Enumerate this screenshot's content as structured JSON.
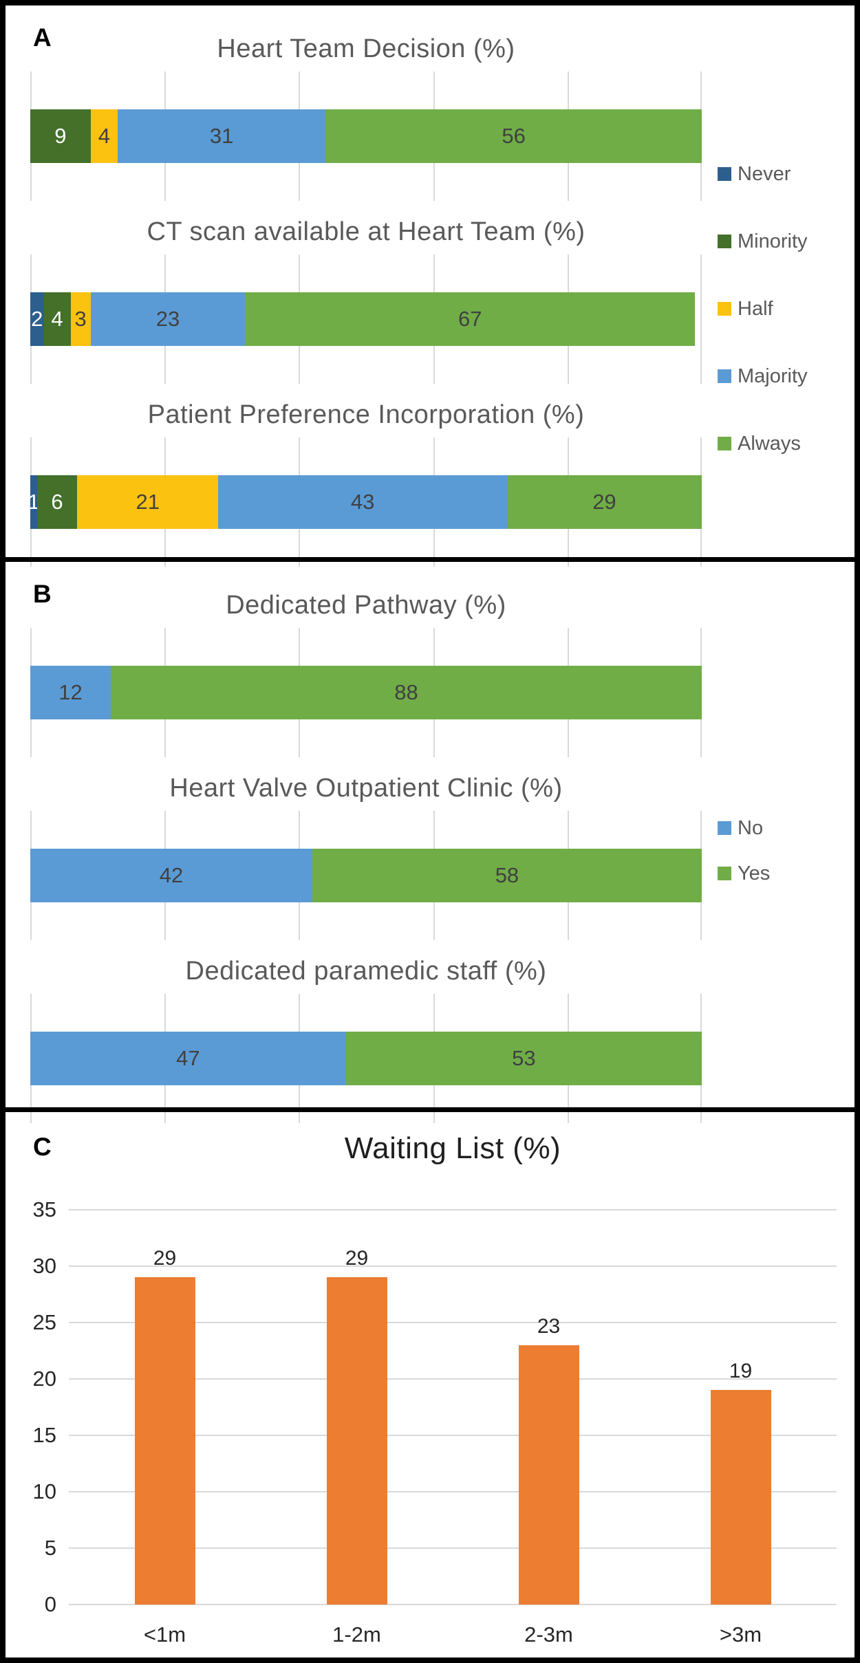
{
  "panel_labels": {
    "a": "A",
    "b": "B",
    "c": "C"
  },
  "style_colors": {
    "grid": "#D9D9D9",
    "title_gray": "#595959",
    "label_dark": "#404040",
    "label_white": "#FFFFFF",
    "panel_c_text": "#262626",
    "border": "#000000"
  },
  "chart_data": [
    {
      "panel": "A",
      "type": "bar",
      "subtype": "stacked-horizontal-100",
      "unit": "%",
      "legend": [
        "Never",
        "Minority",
        "Half",
        "Majority",
        "Always"
      ],
      "colors": [
        "#2C5F8E",
        "#44702A",
        "#FCC210",
        "#5B9BD5",
        "#70AD47"
      ],
      "label_colors": [
        "#FFFFFF",
        "#FFFFFF",
        "#404040",
        "#404040",
        "#404040"
      ],
      "axis": {
        "min": 0,
        "max": 100,
        "gridline_step": 20
      },
      "legend_position": "right",
      "charts": [
        {
          "title": "Heart Team Decision (%)",
          "values": [
            0,
            9,
            4,
            31,
            56
          ]
        },
        {
          "title": "CT scan available at Heart Team (%)",
          "values": [
            2,
            4,
            3,
            23,
            67
          ]
        },
        {
          "title": "Patient Preference Incorporation (%)",
          "values": [
            1,
            6,
            21,
            43,
            29
          ]
        }
      ]
    },
    {
      "panel": "B",
      "type": "bar",
      "subtype": "stacked-horizontal-100",
      "unit": "%",
      "legend": [
        "No",
        "Yes"
      ],
      "colors": [
        "#5B9BD5",
        "#70AD47"
      ],
      "label_colors": [
        "#404040",
        "#404040"
      ],
      "axis": {
        "min": 0,
        "max": 100,
        "gridline_step": 20
      },
      "legend_position": "right",
      "charts": [
        {
          "title": "Dedicated Pathway (%)",
          "values": [
            12,
            88
          ]
        },
        {
          "title": "Heart Valve Outpatient Clinic (%)",
          "values": [
            42,
            58
          ]
        },
        {
          "title": "Dedicated paramedic staff (%)",
          "values": [
            47,
            53
          ]
        }
      ]
    },
    {
      "panel": "C",
      "type": "bar",
      "subtype": "vertical-column",
      "unit": "%",
      "title": "Waiting List (%)",
      "categories": [
        "<1m",
        "1-2m",
        "2-3m",
        ">3m"
      ],
      "values": [
        29,
        29,
        23,
        19
      ],
      "bar_color": "#ED7D31",
      "ylim": [
        0,
        35
      ],
      "yticks": [
        0,
        5,
        10,
        15,
        20,
        25,
        30,
        35
      ],
      "grid": true,
      "legend_position": "none"
    }
  ]
}
